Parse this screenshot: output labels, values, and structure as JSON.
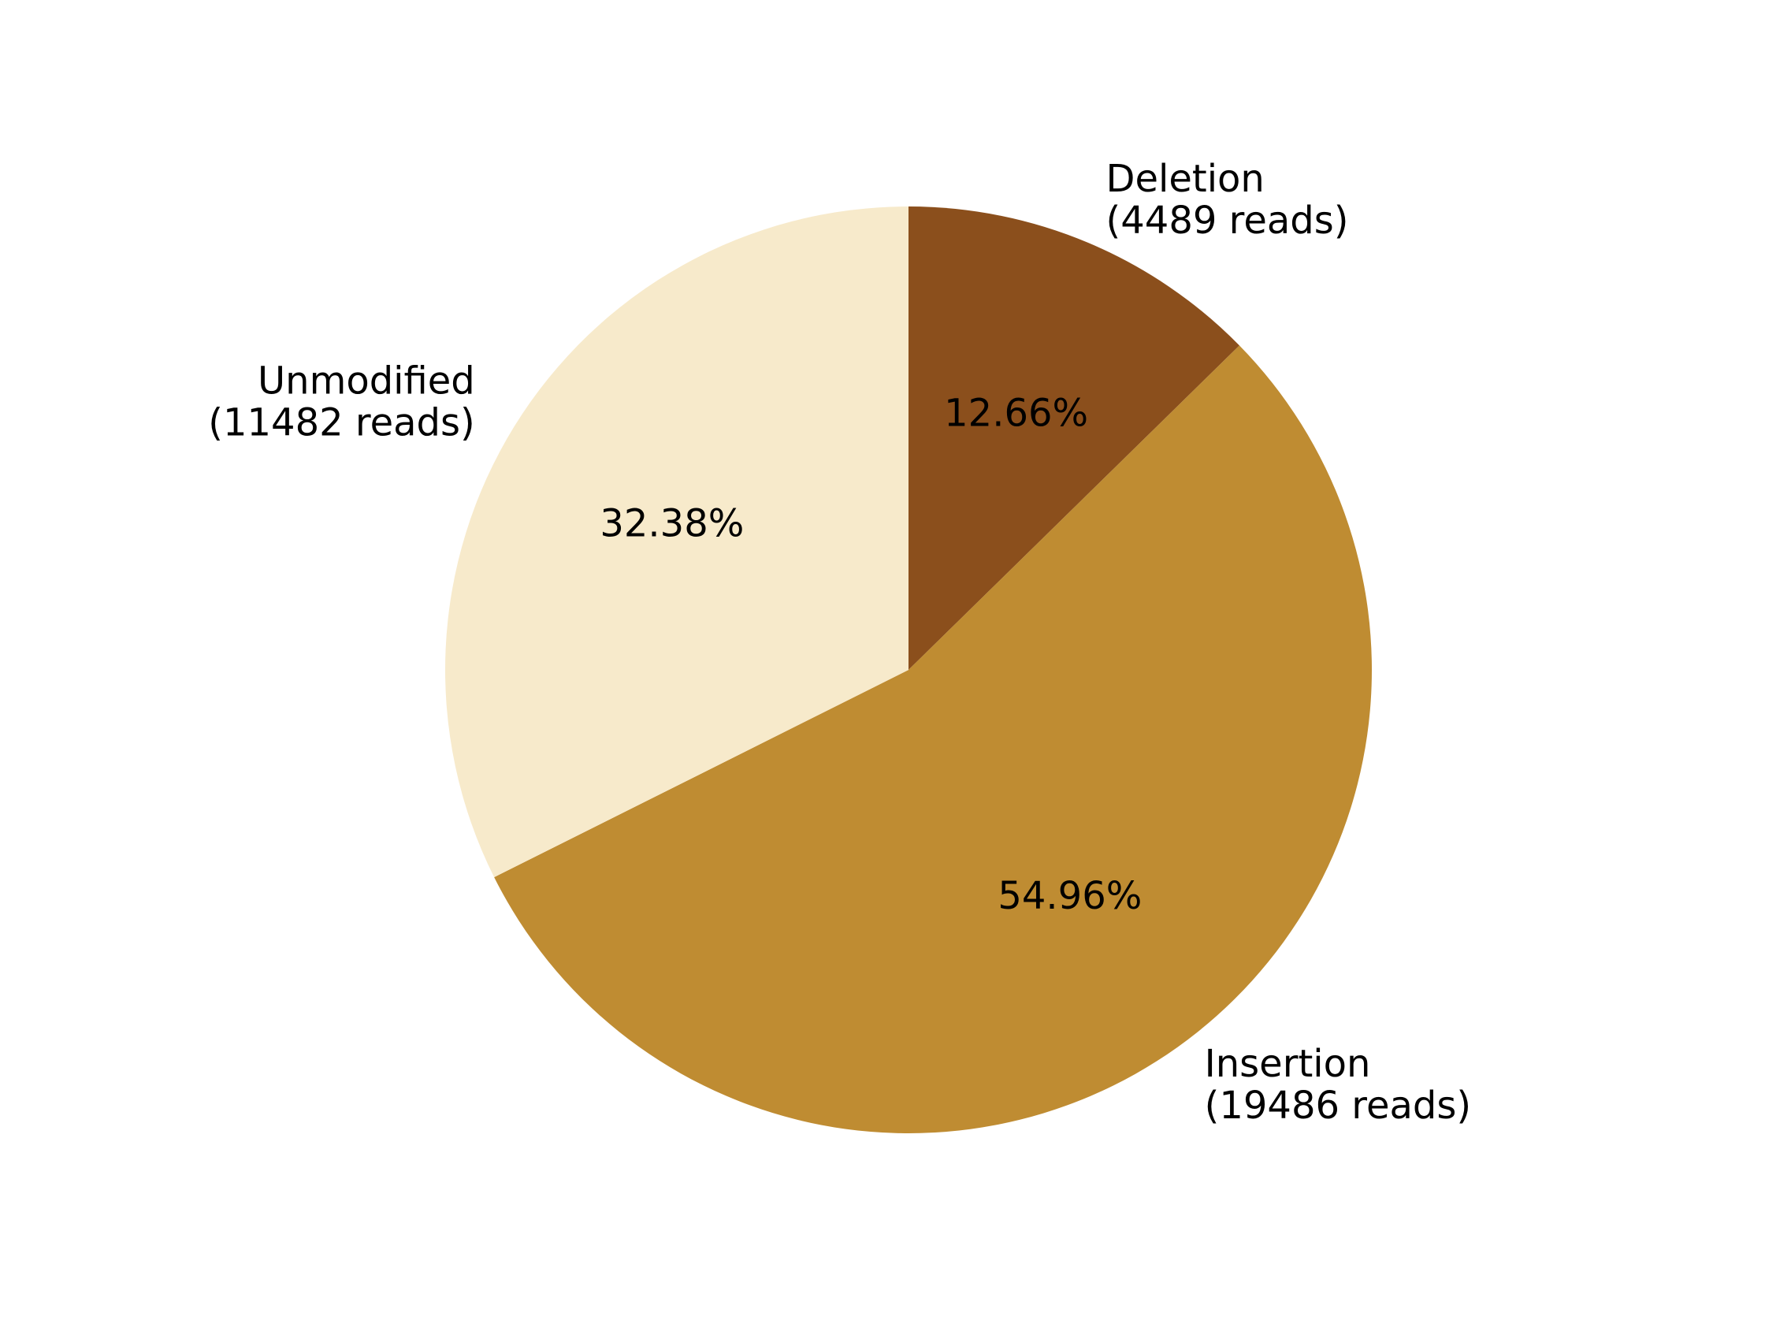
{
  "chart_data": {
    "type": "pie",
    "title": "",
    "start_angle": 90,
    "direction": "clockwise",
    "slices": [
      {
        "name": "Deletion",
        "reads_label": "(4489 reads)",
        "value": 4489,
        "percent_label": "12.66%",
        "color": "#8b4f1c",
        "label_align": "left"
      },
      {
        "name": "Insertion",
        "reads_label": "(19486 reads)",
        "value": 19486,
        "percent_label": "54.96%",
        "color": "#bf8c32",
        "label_align": "left"
      },
      {
        "name": "Unmodified",
        "reads_label": "(11482 reads)",
        "value": 11482,
        "percent_label": "32.38%",
        "color": "#f7eacb",
        "label_align": "right"
      }
    ]
  }
}
